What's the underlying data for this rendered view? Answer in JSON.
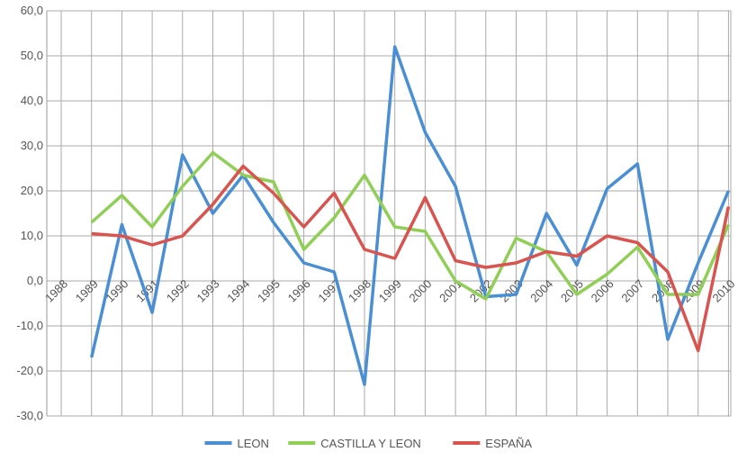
{
  "chart_data": {
    "type": "line",
    "categories": [
      "1988",
      "1989",
      "1990",
      "1991",
      "1992",
      "1993",
      "1994",
      "1995",
      "1996",
      "1997",
      "1998",
      "1999",
      "2000",
      "2001",
      "2002",
      "2003",
      "2004",
      "2005",
      "2006",
      "2007",
      "2008",
      "2009",
      "2010"
    ],
    "series": [
      {
        "name": "LEON",
        "color": "#4a8fd4",
        "values": [
          null,
          -17,
          12.5,
          -7,
          28,
          15,
          23.5,
          13,
          4,
          2,
          -23,
          52,
          33,
          21,
          -3.5,
          -3,
          15,
          3.5,
          20.5,
          26,
          -13,
          4,
          20
        ]
      },
      {
        "name": "CASTILLA Y LEON",
        "color": "#8fcf55",
        "values": [
          null,
          13,
          19,
          12,
          21,
          28.5,
          23.5,
          22,
          7,
          14,
          23.5,
          12,
          11,
          0,
          -4,
          9.5,
          6.5,
          -3,
          1.5,
          7.5,
          -3,
          -3,
          12.5
        ]
      },
      {
        "name": "ESPAÑA",
        "color": "#d9534f",
        "values": [
          null,
          10.5,
          10,
          8,
          10,
          17,
          25.5,
          19.5,
          12,
          19.5,
          7,
          5,
          18.5,
          4.5,
          3,
          4,
          6.5,
          5.5,
          10,
          8.5,
          2,
          -15.5,
          16.5
        ]
      }
    ],
    "ylim": [
      -30,
      60
    ],
    "yticks": [
      {
        "value": -30,
        "label": "-30,0"
      },
      {
        "value": -20,
        "label": "-20,0"
      },
      {
        "value": -10,
        "label": "-10,0"
      },
      {
        "value": 0,
        "label": "0,0"
      },
      {
        "value": 10,
        "label": "10,0"
      },
      {
        "value": 20,
        "label": "20,0"
      },
      {
        "value": 30,
        "label": "30,0"
      },
      {
        "value": 40,
        "label": "40,0"
      },
      {
        "value": 50,
        "label": "50,0"
      },
      {
        "value": 60,
        "label": "60,0"
      }
    ],
    "grid": true
  }
}
